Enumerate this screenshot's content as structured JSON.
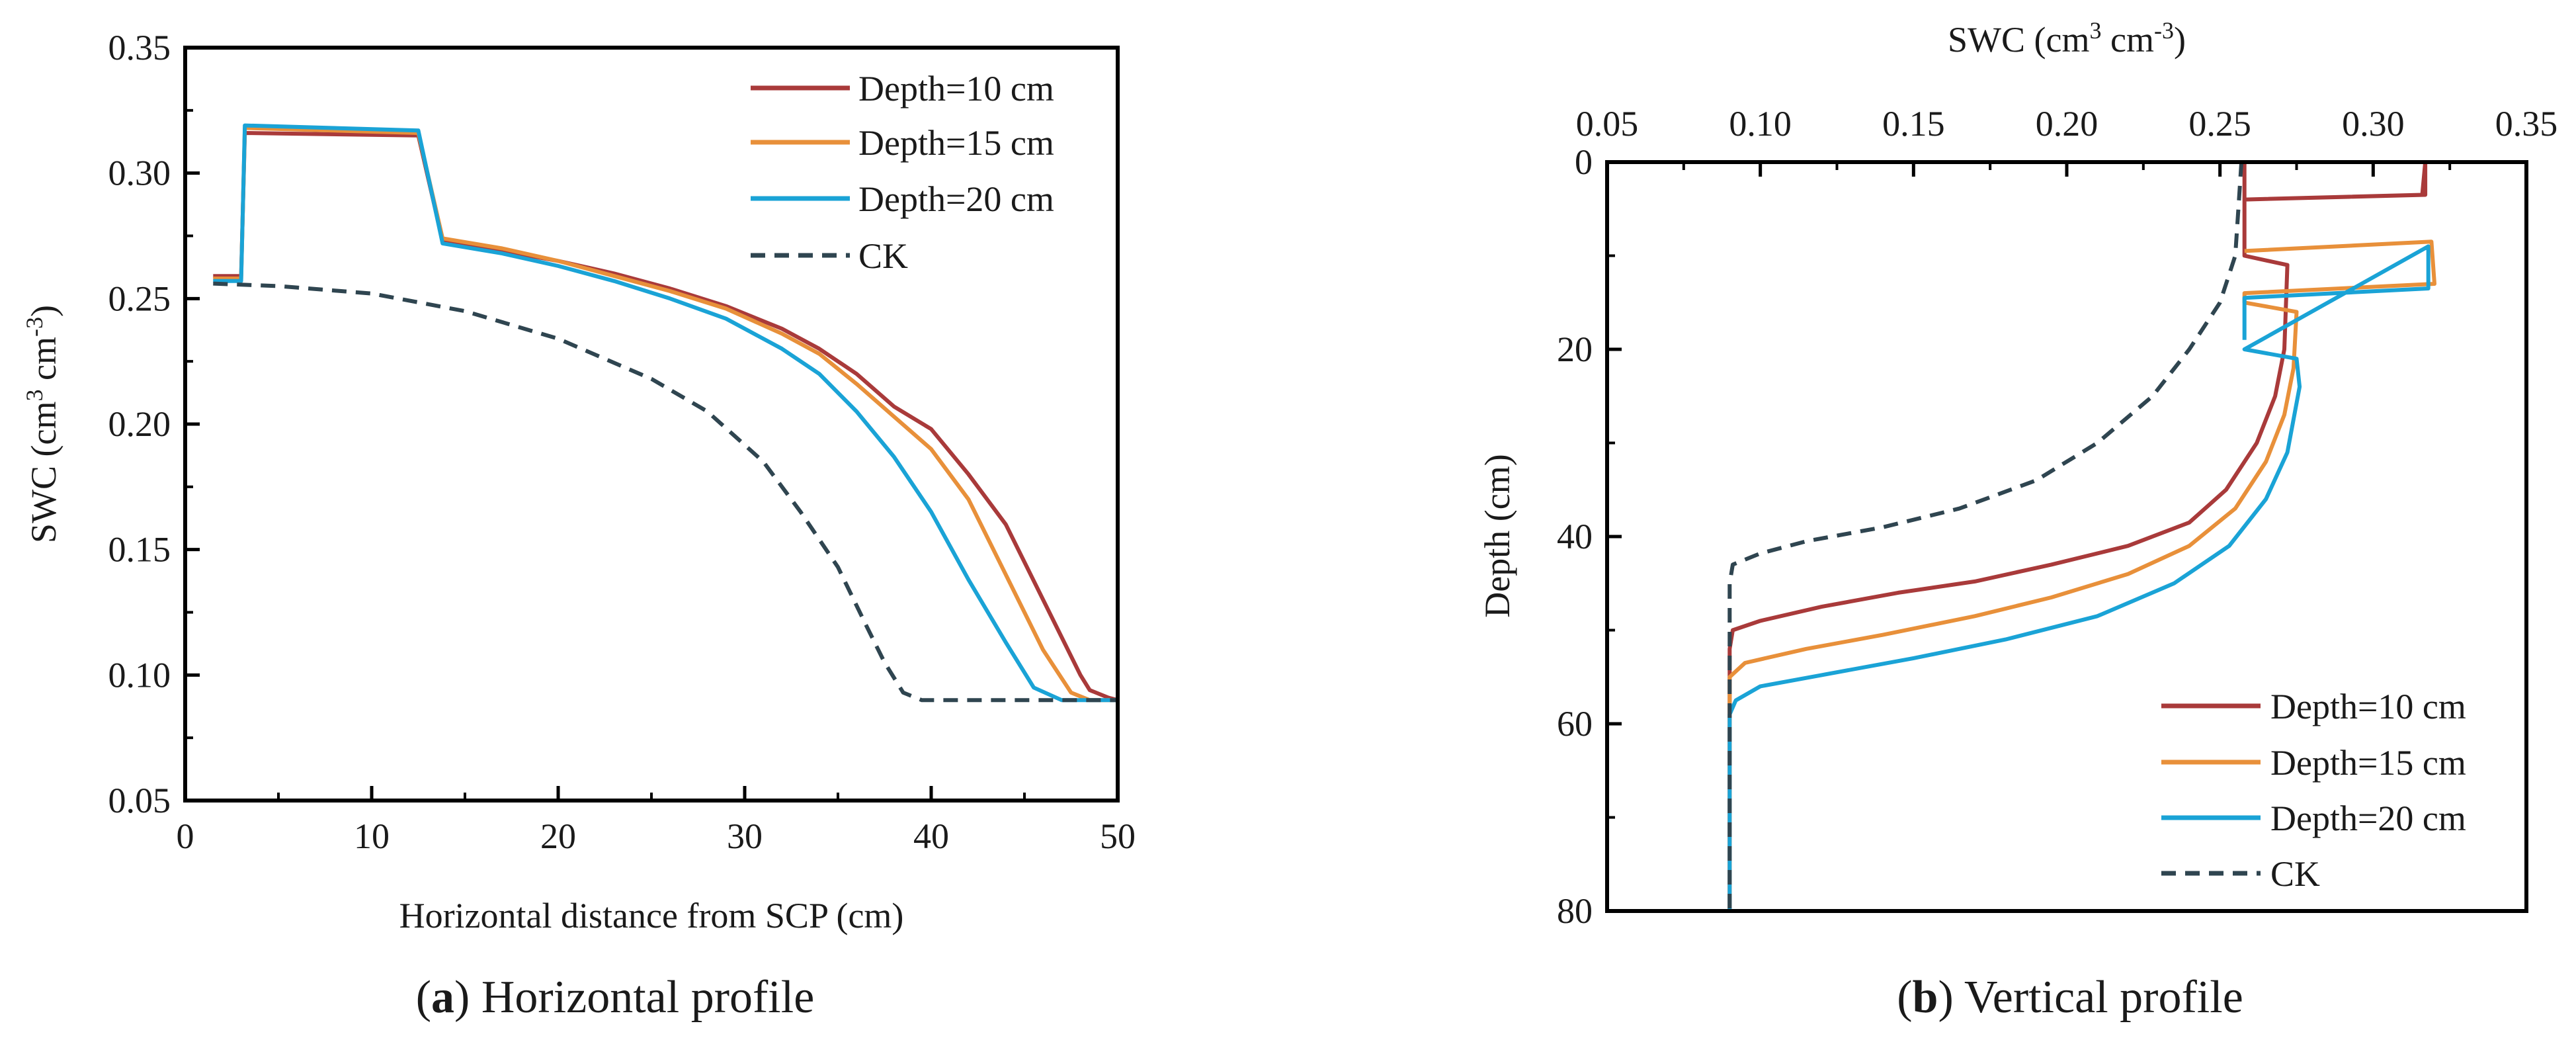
{
  "colors": {
    "depth10": "#a93a3a",
    "depth15": "#e8903a",
    "depth20": "#1aa3d6",
    "ck": "#2f4550",
    "axis": "#000000"
  },
  "chart_data": [
    {
      "type": "line",
      "caption_letter": "a",
      "caption_text": "Horizontal profile",
      "xlabel": "Horizontal distance from SCP (cm)",
      "ylabel_main": "SWC (cm",
      "ylabel_sup1": "3",
      "ylabel_mid": " cm",
      "ylabel_sup2": "-3",
      "ylabel_end": ")",
      "xlim": [
        0,
        50
      ],
      "ylim": [
        0.05,
        0.35
      ],
      "xticks": [
        "0",
        "10",
        "20",
        "30",
        "40",
        "50"
      ],
      "xtick_values": [
        0,
        10,
        20,
        30,
        40,
        50
      ],
      "yticks": [
        "0.05",
        "0.10",
        "0.15",
        "0.20",
        "0.25",
        "0.30",
        "0.35"
      ],
      "ytick_values": [
        0.05,
        0.1,
        0.15,
        0.2,
        0.25,
        0.3,
        0.35
      ],
      "legend_position": "top-right",
      "series": [
        {
          "name": "Depth=10 cm",
          "style": "solid",
          "color_key": "depth10",
          "points": [
            [
              1.5,
              0.259
            ],
            [
              3.0,
              0.259
            ],
            [
              3.2,
              0.316
            ],
            [
              12.5,
              0.315
            ],
            [
              13.8,
              0.273
            ],
            [
              17,
              0.269
            ],
            [
              20,
              0.265
            ],
            [
              23,
              0.26
            ],
            [
              26,
              0.254
            ],
            [
              29,
              0.247
            ],
            [
              32,
              0.238
            ],
            [
              34,
              0.23
            ],
            [
              36,
              0.22
            ],
            [
              38,
              0.207
            ],
            [
              40,
              0.198
            ],
            [
              42,
              0.18
            ],
            [
              44,
              0.16
            ],
            [
              46,
              0.13
            ],
            [
              48,
              0.1
            ],
            [
              48.5,
              0.094
            ],
            [
              49.5,
              0.091
            ],
            [
              50,
              0.09
            ]
          ]
        },
        {
          "name": "Depth=15 cm",
          "style": "solid",
          "color_key": "depth15",
          "points": [
            [
              1.5,
              0.258
            ],
            [
              3.0,
              0.258
            ],
            [
              3.2,
              0.318
            ],
            [
              12.5,
              0.316
            ],
            [
              13.8,
              0.274
            ],
            [
              17,
              0.27
            ],
            [
              20,
              0.265
            ],
            [
              23,
              0.259
            ],
            [
              26,
              0.253
            ],
            [
              29,
              0.246
            ],
            [
              32,
              0.236
            ],
            [
              34,
              0.228
            ],
            [
              36,
              0.216
            ],
            [
              38,
              0.203
            ],
            [
              40,
              0.19
            ],
            [
              42,
              0.17
            ],
            [
              44,
              0.14
            ],
            [
              46,
              0.11
            ],
            [
              47.5,
              0.093
            ],
            [
              48.5,
              0.09
            ],
            [
              50,
              0.09
            ]
          ]
        },
        {
          "name": "Depth=20 cm",
          "style": "solid",
          "color_key": "depth20",
          "points": [
            [
              1.5,
              0.257
            ],
            [
              3.0,
              0.257
            ],
            [
              3.2,
              0.319
            ],
            [
              12.5,
              0.317
            ],
            [
              13.8,
              0.272
            ],
            [
              17,
              0.268
            ],
            [
              20,
              0.263
            ],
            [
              23,
              0.257
            ],
            [
              26,
              0.25
            ],
            [
              29,
              0.242
            ],
            [
              32,
              0.23
            ],
            [
              34,
              0.22
            ],
            [
              36,
              0.205
            ],
            [
              38,
              0.187
            ],
            [
              40,
              0.165
            ],
            [
              42,
              0.138
            ],
            [
              44,
              0.113
            ],
            [
              45.5,
              0.095
            ],
            [
              47,
              0.09
            ],
            [
              50,
              0.09
            ]
          ]
        },
        {
          "name": "CK",
          "style": "dashed",
          "color_key": "ck",
          "points": [
            [
              1.5,
              0.256
            ],
            [
              5,
              0.255
            ],
            [
              10,
              0.252
            ],
            [
              15,
              0.245
            ],
            [
              20,
              0.234
            ],
            [
              25,
              0.218
            ],
            [
              28,
              0.205
            ],
            [
              31,
              0.185
            ],
            [
              33,
              0.165
            ],
            [
              35,
              0.143
            ],
            [
              36.5,
              0.12
            ],
            [
              37.5,
              0.105
            ],
            [
              38.5,
              0.093
            ],
            [
              39.5,
              0.09
            ],
            [
              42,
              0.09
            ],
            [
              50,
              0.09
            ]
          ]
        }
      ]
    },
    {
      "type": "line",
      "caption_letter": "b",
      "caption_text": "Vertical profile",
      "xlabel_main": "SWC (cm",
      "xlabel_sup1": "3",
      "xlabel_mid": " cm",
      "xlabel_sup2": "-3",
      "xlabel_end": ")",
      "ylabel": "Depth (cm)",
      "xlim": [
        0.05,
        0.35
      ],
      "ylim": [
        0,
        80
      ],
      "y_inverted": true,
      "x_axis_position": "top",
      "xticks": [
        "0.05",
        "0.10",
        "0.15",
        "0.20",
        "0.25",
        "0.30",
        "0.35"
      ],
      "xtick_values": [
        0.05,
        0.1,
        0.15,
        0.2,
        0.25,
        0.3,
        0.35
      ],
      "yticks": [
        "0",
        "20",
        "40",
        "60",
        "80"
      ],
      "ytick_values": [
        0,
        20,
        40,
        60,
        80
      ],
      "legend_position": "bottom-right",
      "series": [
        {
          "name": "Depth=10 cm",
          "style": "solid",
          "color_key": "depth10",
          "points": [
            [
              0.258,
              0.0
            ],
            [
              0.258,
              4.0
            ],
            [
              0.316,
              3.5
            ],
            [
              0.317,
              0.0
            ],
            [
              0.317,
              3.5
            ],
            [
              0.258,
              4.0
            ],
            [
              0.258,
              10.0
            ],
            [
              0.272,
              11.0
            ],
            [
              0.271,
              20.0
            ],
            [
              0.268,
              25.0
            ],
            [
              0.262,
              30.0
            ],
            [
              0.252,
              35.0
            ],
            [
              0.24,
              38.5
            ],
            [
              0.22,
              41.0
            ],
            [
              0.195,
              43.0
            ],
            [
              0.17,
              44.8
            ],
            [
              0.145,
              46.0
            ],
            [
              0.12,
              47.5
            ],
            [
              0.1,
              49.0
            ],
            [
              0.091,
              50.0
            ],
            [
              0.09,
              52.0
            ],
            [
              0.09,
              80.0
            ]
          ]
        },
        {
          "name": "Depth=15 cm",
          "style": "solid",
          "color_key": "depth15",
          "points": [
            [
              0.258,
              9.5
            ],
            [
              0.319,
              8.5
            ],
            [
              0.32,
              13.0
            ],
            [
              0.258,
              14.0
            ],
            [
              0.258,
              15.0
            ],
            [
              0.275,
              16.0
            ],
            [
              0.274,
              22.0
            ],
            [
              0.271,
              27.0
            ],
            [
              0.265,
              32.0
            ],
            [
              0.255,
              37.0
            ],
            [
              0.24,
              41.0
            ],
            [
              0.22,
              44.0
            ],
            [
              0.195,
              46.5
            ],
            [
              0.17,
              48.5
            ],
            [
              0.14,
              50.5
            ],
            [
              0.115,
              52.0
            ],
            [
              0.095,
              53.5
            ],
            [
              0.09,
              55.0
            ],
            [
              0.09,
              80.0
            ]
          ]
        },
        {
          "name": "Depth=20 cm",
          "style": "solid",
          "color_key": "depth20",
          "points": [
            [
              0.258,
              19.0
            ],
            [
              0.258,
              14.5
            ],
            [
              0.318,
              13.5
            ],
            [
              0.318,
              9.0
            ],
            [
              0.258,
              20.0
            ],
            [
              0.275,
              21.0
            ],
            [
              0.276,
              24.0
            ],
            [
              0.272,
              31.0
            ],
            [
              0.265,
              36.0
            ],
            [
              0.253,
              41.0
            ],
            [
              0.235,
              45.0
            ],
            [
              0.21,
              48.5
            ],
            [
              0.18,
              51.0
            ],
            [
              0.15,
              53.0
            ],
            [
              0.12,
              54.8
            ],
            [
              0.1,
              56.0
            ],
            [
              0.092,
              57.5
            ],
            [
              0.09,
              59.0
            ],
            [
              0.09,
              80.0
            ]
          ]
        },
        {
          "name": "CK",
          "style": "dashed",
          "color_key": "ck",
          "points": [
            [
              0.257,
              0.0
            ],
            [
              0.256,
              5.0
            ],
            [
              0.255,
              10.0
            ],
            [
              0.25,
              15.0
            ],
            [
              0.24,
              20.0
            ],
            [
              0.228,
              25.0
            ],
            [
              0.21,
              30.0
            ],
            [
              0.19,
              34.0
            ],
            [
              0.165,
              37.0
            ],
            [
              0.14,
              39.0
            ],
            [
              0.115,
              40.5
            ],
            [
              0.1,
              41.8
            ],
            [
              0.091,
              43.0
            ],
            [
              0.09,
              45.0
            ],
            [
              0.09,
              80.0
            ]
          ]
        }
      ]
    }
  ]
}
